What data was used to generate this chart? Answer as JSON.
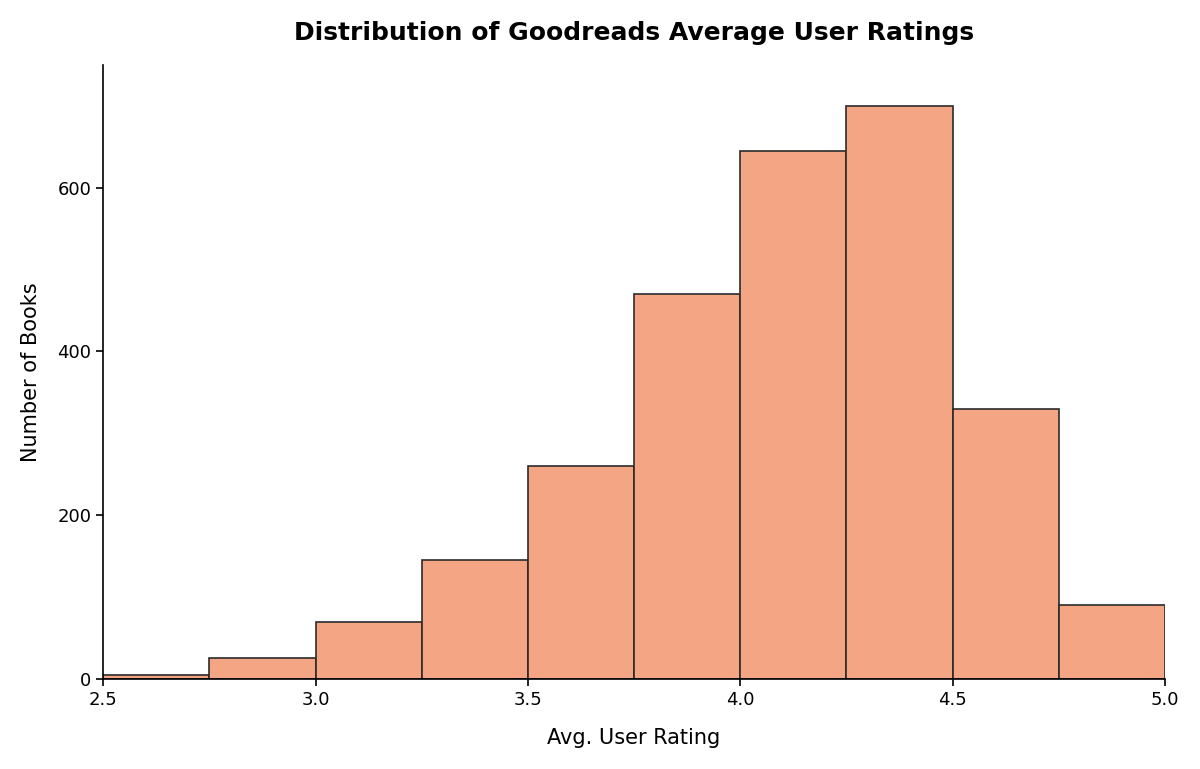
{
  "title": "Distribution of Goodreads Average User Ratings",
  "xlabel": "Avg. User Rating",
  "ylabel": "Number of Books",
  "bar_color": "#F4A583",
  "bar_edge_color": "#2b2b2b",
  "background_color": "#ffffff",
  "xlim": [
    2.5,
    5.0
  ],
  "ylim": [
    0,
    750
  ],
  "xticks": [
    2.5,
    3.0,
    3.5,
    4.0,
    4.5,
    5.0
  ],
  "yticks": [
    0,
    200,
    400,
    600
  ],
  "bin_edges": [
    2.5,
    2.75,
    3.0,
    3.25,
    3.5,
    3.75,
    4.0,
    4.25,
    4.5,
    4.75,
    5.0
  ],
  "bin_heights": [
    5,
    25,
    70,
    145,
    260,
    470,
    645,
    700,
    330,
    90
  ],
  "title_fontsize": 18,
  "label_fontsize": 15,
  "tick_fontsize": 13,
  "title_fontweight": "bold",
  "label_fontfamily": "sans-serif"
}
